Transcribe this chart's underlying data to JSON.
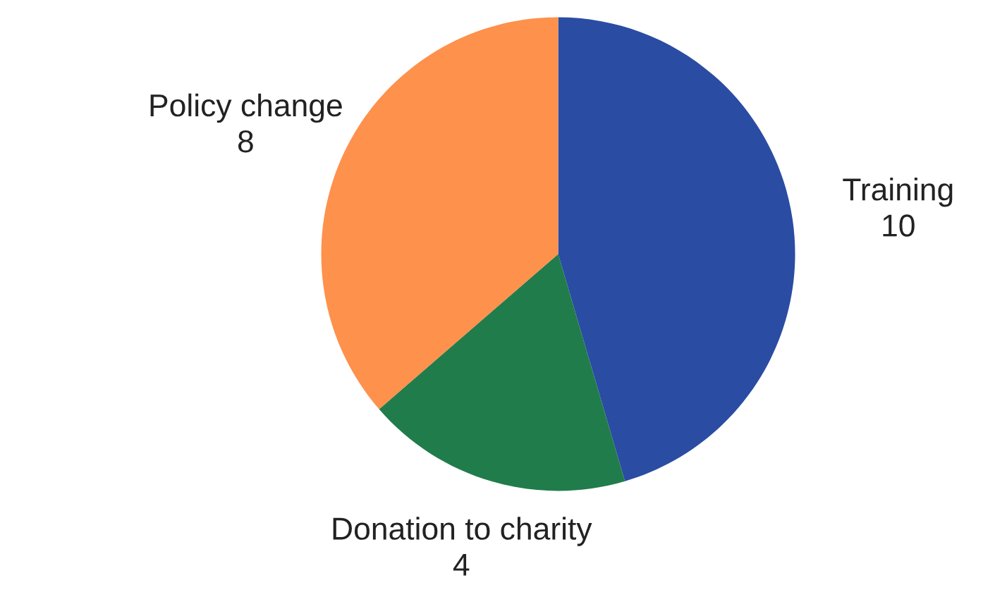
{
  "chart_data": {
    "type": "pie",
    "categories": [
      "Training",
      "Donation to charity",
      "Policy change"
    ],
    "values": [
      10,
      4,
      8
    ],
    "colors": [
      "#2a4ca3",
      "#217c4b",
      "#fe914c"
    ],
    "data_labels": true
  }
}
